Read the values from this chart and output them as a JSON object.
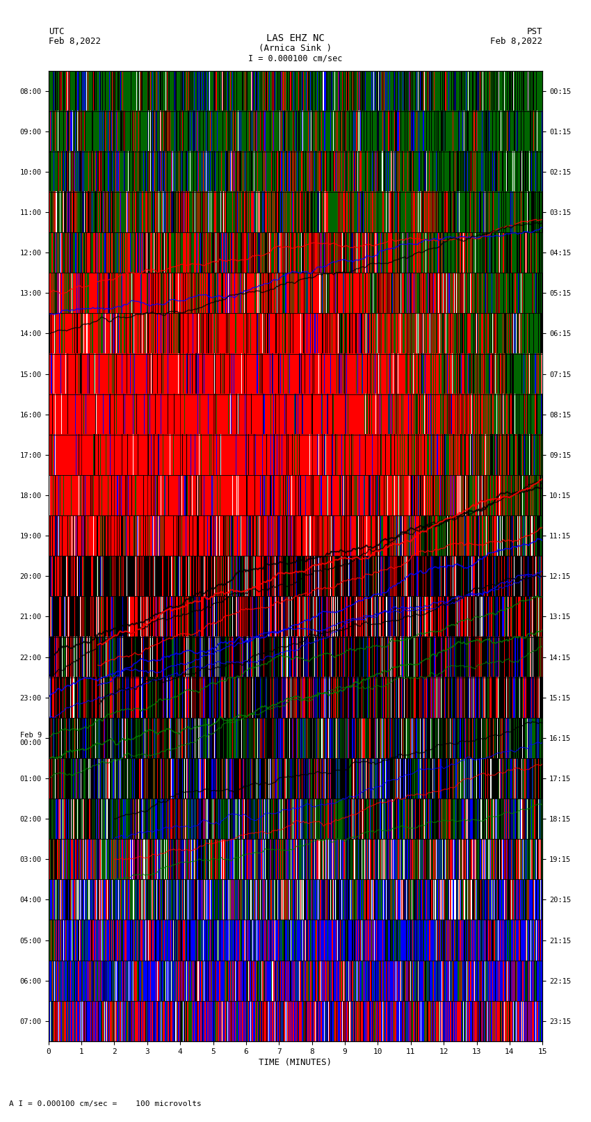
{
  "title_line1": "LAS EHZ NC",
  "title_line2": "(Arnica Sink )",
  "scale_text": "I = 0.000100 cm/sec",
  "left_label_line1": "UTC",
  "left_label_line2": "Feb 8,2022",
  "right_label_line1": "PST",
  "right_label_line2": "Feb 8,2022",
  "bottom_label": "TIME (MINUTES)",
  "bottom_note": "A I = 0.000100 cm/sec =    100 microvolts",
  "utc_times": [
    "08:00",
    "09:00",
    "10:00",
    "11:00",
    "12:00",
    "13:00",
    "14:00",
    "15:00",
    "16:00",
    "17:00",
    "18:00",
    "19:00",
    "20:00",
    "21:00",
    "22:00",
    "23:00",
    "Feb 9\n00:00",
    "01:00",
    "02:00",
    "03:00",
    "04:00",
    "05:00",
    "06:00",
    "07:00"
  ],
  "pst_times": [
    "00:15",
    "01:15",
    "02:15",
    "03:15",
    "04:15",
    "05:15",
    "06:15",
    "07:15",
    "08:15",
    "09:15",
    "10:15",
    "11:15",
    "12:15",
    "13:15",
    "14:15",
    "15:15",
    "16:15",
    "17:15",
    "18:15",
    "19:15",
    "20:15",
    "21:15",
    "22:15",
    "23:15"
  ],
  "x_ticks": [
    0,
    1,
    2,
    3,
    4,
    5,
    6,
    7,
    8,
    9,
    10,
    11,
    12,
    13,
    14,
    15
  ],
  "bg_color": "#ffffff",
  "font_family": "monospace",
  "fig_width": 8.5,
  "fig_height": 16.13,
  "dpi": 100,
  "n_rows": 24,
  "n_minutes": 15,
  "seed": 42
}
